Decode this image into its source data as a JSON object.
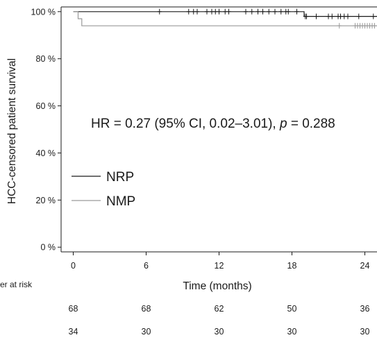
{
  "chart_data": {
    "type": "line",
    "step": true,
    "xlabel": "Time (months)",
    "ylabel": "HCC-censored patient survival",
    "xlim": [
      -1,
      25
    ],
    "ylim": [
      -2,
      102
    ],
    "xticks": [
      {
        "value": 0,
        "label": "0"
      },
      {
        "value": 6,
        "label": "6"
      },
      {
        "value": 12,
        "label": "12"
      },
      {
        "value": 18,
        "label": "18"
      },
      {
        "value": 24,
        "label": "24"
      }
    ],
    "yticks": [
      {
        "value": 0,
        "label": "0 %"
      },
      {
        "value": 20,
        "label": "20 %"
      },
      {
        "value": 40,
        "label": "40 %"
      },
      {
        "value": 60,
        "label": "60 %"
      },
      {
        "value": 80,
        "label": "80 %"
      },
      {
        "value": 100,
        "label": "100 %"
      }
    ],
    "annotation": {
      "text_pre": "HR = 0.27 (95% CI, 0.02–3.01), ",
      "text_p": "p",
      "text_post": " = 0.288"
    },
    "legend_position": "lower-left",
    "series": [
      {
        "name": "NRP",
        "color": "#1a1a1a",
        "steps": [
          [
            0,
            100
          ],
          [
            19.0,
            100
          ],
          [
            19.0,
            98
          ],
          [
            25,
            98
          ]
        ],
        "censor_times": [
          7.1,
          9.5,
          9.9,
          10.2,
          11.0,
          11.4,
          11.7,
          12.0,
          12.5,
          12.8,
          14.2,
          14.7,
          15.2,
          15.6,
          16.1,
          16.6,
          17.1,
          17.5,
          17.7,
          18.4,
          19.1,
          19.2,
          20.0,
          21.0,
          21.3,
          21.8,
          22.0,
          22.3,
          22.6,
          23.5,
          24.7
        ],
        "at_risk": [
          "68",
          "68",
          "62",
          "50",
          "36"
        ]
      },
      {
        "name": "NMP",
        "color": "#9a9a9a",
        "steps": [
          [
            0,
            100
          ],
          [
            0.4,
            100
          ],
          [
            0.4,
            97
          ],
          [
            0.7,
            97
          ],
          [
            0.7,
            94
          ],
          [
            25,
            94
          ]
        ],
        "censor_times": [
          21.9,
          23.2,
          23.4,
          23.6,
          23.8,
          24.0,
          24.2,
          24.4,
          24.6,
          24.8
        ],
        "at_risk": [
          "34",
          "30",
          "30",
          "30",
          "30"
        ]
      }
    ],
    "at_risk_label": "er at risk"
  }
}
